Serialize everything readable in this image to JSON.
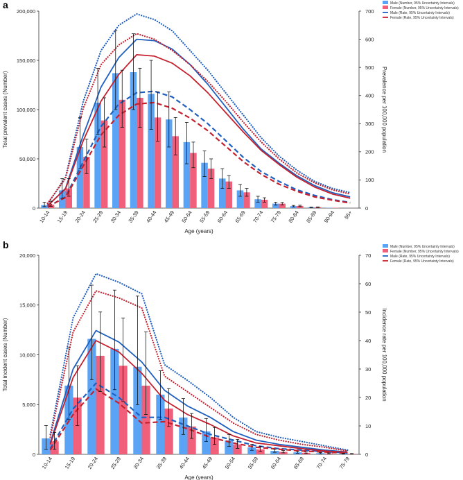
{
  "panels": {
    "a": {
      "label": "a"
    },
    "b": {
      "label": "b"
    }
  },
  "legend": {
    "male_number": "Male (Number, 95% Uncertainty Intervals)",
    "female_number": "Female (Number, 95% Uncertainty Intervals)",
    "male_rate": "Male (Rate, 95% Uncertainty Intervals)",
    "female_rate": "Female (Rate, 95% Uncertainty Intervals)"
  },
  "colors": {
    "male_bar": "#5aa3f5",
    "female_bar": "#f0607a",
    "male_line": "#1f5fbf",
    "female_line": "#c4202e",
    "axis": "#333333"
  },
  "chart_data": [
    {
      "type": "bar",
      "panel": "a",
      "title": "",
      "xlabel": "Age (years)",
      "ylabel": "Total prevalent cases (Number)",
      "y2label": "Prevalence per 100,000 population",
      "categories": [
        "10-14",
        "15-19",
        "20-24",
        "25-29",
        "30-34",
        "35-39",
        "40-44",
        "45-49",
        "50-54",
        "55-59",
        "60-64",
        "65-69",
        "70-74",
        "75-79",
        "80-84",
        "85-89",
        "90-94",
        "95+"
      ],
      "ylim": [
        0,
        200000
      ],
      "yticks": [
        0,
        50000,
        100000,
        150000,
        200000
      ],
      "ytick_labels": [
        "0",
        "50,000",
        "100,000",
        "150,000",
        "200,000"
      ],
      "y2lim": [
        0,
        700
      ],
      "y2ticks": [
        0,
        100,
        200,
        300,
        400,
        500,
        600,
        700
      ],
      "y2tick_labels": [
        "0",
        "100",
        "200",
        "300",
        "400",
        "500",
        "600",
        "700"
      ],
      "series": [
        {
          "name": "Male (Number)",
          "kind": "bar",
          "values": [
            3000,
            18000,
            62000,
            107000,
            137000,
            138000,
            116000,
            90000,
            67000,
            46000,
            30000,
            18000,
            9000,
            4500,
            2000,
            800,
            300,
            80
          ],
          "lower": [
            1500,
            10000,
            40000,
            75000,
            100000,
            100000,
            80000,
            62000,
            45000,
            32000,
            20000,
            12000,
            6000,
            3000,
            1300,
            500,
            180,
            40
          ],
          "upper": [
            6000,
            30000,
            92000,
            142000,
            180000,
            177000,
            150000,
            118000,
            87000,
            58000,
            40000,
            24000,
            12000,
            6000,
            2700,
            1100,
            420,
            120
          ]
        },
        {
          "name": "Female (Number)",
          "kind": "bar",
          "values": [
            3500,
            20000,
            52000,
            89000,
            110000,
            112000,
            92000,
            73000,
            56000,
            40000,
            27000,
            16000,
            8500,
            4500,
            2200,
            900,
            350,
            100
          ],
          "lower": [
            1800,
            12000,
            35000,
            62000,
            82000,
            82000,
            68000,
            54000,
            41000,
            30000,
            20000,
            12000,
            6000,
            3200,
            1500,
            600,
            220,
            60
          ],
          "upper": [
            7000,
            30000,
            70000,
            112000,
            140000,
            142000,
            118000,
            92000,
            67000,
            50000,
            33000,
            20000,
            10500,
            5800,
            2900,
            1200,
            480,
            150
          ]
        },
        {
          "name": "Male (Rate)",
          "kind": "line",
          "style": "solid",
          "values": [
            8,
            70,
            260,
            430,
            535,
            600,
            595,
            565,
            510,
            440,
            360,
            280,
            210,
            160,
            115,
            80,
            55,
            40
          ]
        },
        {
          "name": "Male (Rate) upper",
          "kind": "line",
          "style": "dotted",
          "values": [
            15,
            110,
            380,
            560,
            650,
            690,
            670,
            630,
            560,
            490,
            410,
            330,
            250,
            185,
            135,
            95,
            70,
            55
          ]
        },
        {
          "name": "Male (Rate) lower",
          "kind": "line",
          "style": "dashed",
          "values": [
            4,
            40,
            165,
            290,
            370,
            410,
            415,
            395,
            350,
            300,
            240,
            180,
            130,
            95,
            65,
            45,
            30,
            20
          ]
        },
        {
          "name": "Female (Rate)",
          "kind": "line",
          "style": "solid",
          "values": [
            9,
            68,
            240,
            380,
            475,
            545,
            540,
            515,
            470,
            410,
            340,
            270,
            205,
            155,
            110,
            75,
            50,
            35
          ]
        },
        {
          "name": "Female (Rate) upper",
          "kind": "line",
          "style": "dotted",
          "values": [
            17,
            105,
            355,
            510,
            580,
            620,
            600,
            560,
            510,
            450,
            380,
            305,
            235,
            175,
            125,
            90,
            65,
            50
          ]
        },
        {
          "name": "Female (Rate) lower",
          "kind": "line",
          "style": "dashed",
          "values": [
            5,
            38,
            150,
            260,
            330,
            370,
            375,
            355,
            320,
            275,
            220,
            165,
            120,
            85,
            60,
            40,
            28,
            18
          ]
        }
      ]
    },
    {
      "type": "bar",
      "panel": "b",
      "title": "",
      "xlabel": "Age (years)",
      "ylabel": "Total incident cases (Number)",
      "y2label": "Incidence rate per 100,000 population",
      "categories": [
        "10-14",
        "15-19",
        "20-24",
        "25-29",
        "30-34",
        "35-39",
        "40-44",
        "45-49",
        "50-54",
        "55-59",
        "60-64",
        "65-69",
        "70-74",
        "75-79"
      ],
      "ylim": [
        0,
        20000
      ],
      "yticks": [
        0,
        5000,
        10000,
        15000,
        20000
      ],
      "ytick_labels": [
        "0",
        "5,000",
        "10,000",
        "15,000",
        "20,000"
      ],
      "y2lim": [
        0,
        70
      ],
      "y2ticks": [
        0,
        10,
        20,
        30,
        40,
        50,
        60,
        70
      ],
      "y2tick_labels": [
        "0",
        "10",
        "20",
        "30",
        "40",
        "50",
        "60",
        "70"
      ],
      "series": [
        {
          "name": "Male (Number)",
          "kind": "bar",
          "values": [
            1600,
            6900,
            11600,
            10600,
            8800,
            6000,
            3700,
            2300,
            1400,
            700,
            350,
            200,
            120,
            60
          ],
          "lower": [
            500,
            3500,
            7500,
            6500,
            5000,
            3500,
            2000,
            1300,
            800,
            400,
            200,
            110,
            60,
            30
          ],
          "upper": [
            2900,
            10700,
            17000,
            16500,
            15900,
            8400,
            5600,
            3600,
            2000,
            1000,
            520,
            300,
            180,
            90
          ]
        },
        {
          "name": "Female (Number)",
          "kind": "bar",
          "values": [
            1300,
            5700,
            9900,
            8900,
            6900,
            4600,
            2800,
            1700,
            1000,
            500,
            250,
            150,
            90,
            50
          ],
          "lower": [
            500,
            2900,
            6300,
            5300,
            4000,
            2800,
            1600,
            1000,
            600,
            300,
            150,
            90,
            50,
            25
          ],
          "upper": [
            2200,
            8900,
            14300,
            13700,
            12300,
            6600,
            4100,
            2700,
            1500,
            800,
            380,
            230,
            140,
            80
          ]
        },
        {
          "name": "Male (Rate)",
          "kind": "line",
          "style": "solid",
          "values": [
            4,
            30,
            43.5,
            39.5,
            32.5,
            22.5,
            17,
            13,
            8,
            5,
            3.5,
            2.5,
            1.5,
            0.8
          ]
        },
        {
          "name": "Male (Rate) upper",
          "kind": "line",
          "style": "dotted",
          "values": [
            7,
            48,
            63.5,
            60.5,
            56.5,
            31.5,
            26,
            20,
            13,
            8,
            6,
            4.5,
            3,
            1.5
          ]
        },
        {
          "name": "Male (Rate) lower",
          "kind": "line",
          "style": "dashed",
          "values": [
            2,
            16,
            25,
            20,
            13,
            13,
            10,
            7,
            5,
            3,
            2,
            1.5,
            1,
            0.5
          ]
        },
        {
          "name": "Female (Rate)",
          "kind": "line",
          "style": "solid",
          "values": [
            3.5,
            27,
            40,
            36,
            28.5,
            19,
            14,
            10.5,
            6.5,
            4,
            3,
            2,
            1.2,
            0.7
          ]
        },
        {
          "name": "Female (Rate) upper",
          "kind": "line",
          "style": "dotted",
          "values": [
            6,
            43,
            57.5,
            55,
            51.5,
            27.5,
            22,
            16.5,
            11,
            7,
            5,
            3.5,
            2.5,
            1.2
          ]
        },
        {
          "name": "Female (Rate) lower",
          "kind": "line",
          "style": "dashed",
          "values": [
            1.5,
            14,
            23,
            18,
            11,
            11.5,
            9,
            6,
            4,
            2.5,
            1.8,
            1.2,
            0.8,
            0.4
          ]
        }
      ]
    }
  ]
}
